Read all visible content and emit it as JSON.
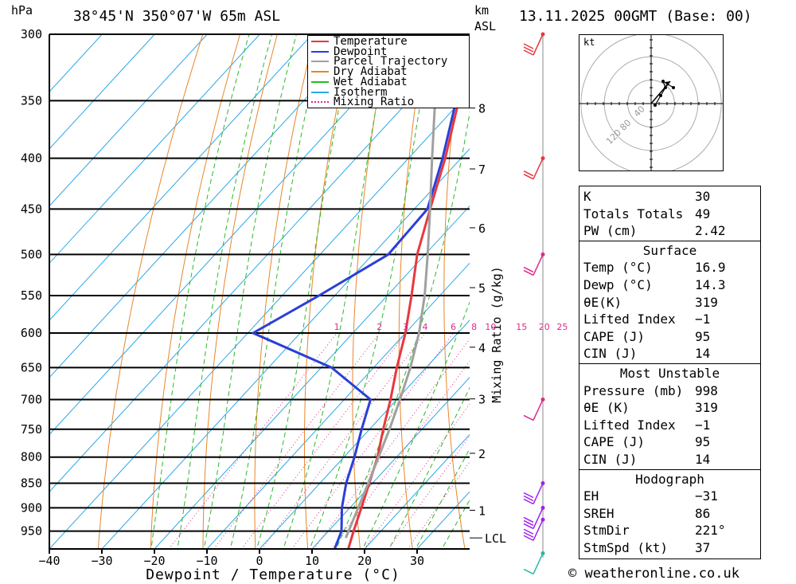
{
  "header": {
    "location": "38°45'N 350°07'W 65m ASL",
    "datetime": "13.11.2025 00GMT (Base: 00)",
    "hpa_unit": "hPa",
    "km_label": "km",
    "asl_label": "ASL"
  },
  "chart_data": {
    "type": "line",
    "title": "38°45'N 350°07'W 65m ASL",
    "xlabel": "Dewpoint / Temperature (°C)",
    "ylabel": "hPa",
    "xlim": [
      -40,
      40
    ],
    "ylim": [
      300,
      990
    ],
    "x_ticks": [
      -40,
      -30,
      -20,
      -10,
      0,
      10,
      20,
      30
    ],
    "pressure_levels": [
      300,
      350,
      400,
      450,
      500,
      550,
      600,
      650,
      700,
      750,
      800,
      850,
      900,
      950
    ],
    "km_ticks": [
      {
        "km": "1",
        "p": 905
      },
      {
        "km": "2",
        "p": 793
      },
      {
        "km": "3",
        "p": 699
      },
      {
        "km": "4",
        "p": 620
      },
      {
        "km": "5",
        "p": 540
      },
      {
        "km": "6",
        "p": 470
      },
      {
        "km": "7",
        "p": 410
      },
      {
        "km": "8",
        "p": 356
      }
    ],
    "lcl_label": "LCL",
    "lcl_pressure": 965,
    "mixing_ratio_label": "Mixing Ratio (g/kg)",
    "mixing_ratios": [
      "1",
      "2",
      "3",
      "4",
      "6",
      "8",
      "10",
      "15",
      "20",
      "25"
    ],
    "legend": {
      "position": "top-right",
      "items": [
        {
          "label": "Temperature",
          "color": "#e8383d"
        },
        {
          "label": "Dewpoint",
          "color": "#2a3fd8"
        },
        {
          "label": "Parcel Trajectory",
          "color": "#a0a0a0"
        },
        {
          "label": "Dry Adiabat",
          "color": "#e8862a"
        },
        {
          "label": "Wet Adiabat",
          "color": "#2ab82a"
        },
        {
          "label": "Isotherm",
          "color": "#2aa8e8"
        },
        {
          "label": "Mixing Ratio",
          "color": "#e0288c"
        }
      ]
    },
    "series": [
      {
        "name": "Temperature",
        "color": "#e8383d",
        "points": [
          {
            "p": 990,
            "t": 16.9
          },
          {
            "p": 950,
            "t": 14.8
          },
          {
            "p": 900,
            "t": 12.2
          },
          {
            "p": 850,
            "t": 9.4
          },
          {
            "p": 800,
            "t": 6.4
          },
          {
            "p": 750,
            "t": 2.6
          },
          {
            "p": 700,
            "t": -1.2
          },
          {
            "p": 650,
            "t": -5.6
          },
          {
            "p": 600,
            "t": -10.0
          },
          {
            "p": 550,
            "t": -15.4
          },
          {
            "p": 500,
            "t": -21.5
          },
          {
            "p": 450,
            "t": -27.0
          },
          {
            "p": 400,
            "t": -33.0
          },
          {
            "p": 350,
            "t": -40.5
          },
          {
            "p": 300,
            "t": -49.0
          }
        ]
      },
      {
        "name": "Dewpoint",
        "color": "#2a3fd8",
        "points": [
          {
            "p": 990,
            "t": 14.3
          },
          {
            "p": 950,
            "t": 12.5
          },
          {
            "p": 900,
            "t": 8.5
          },
          {
            "p": 850,
            "t": 5.0
          },
          {
            "p": 800,
            "t": 2.0
          },
          {
            "p": 750,
            "t": -1.5
          },
          {
            "p": 700,
            "t": -5.0
          },
          {
            "p": 650,
            "t": -18.0
          },
          {
            "p": 600,
            "t": -39.0
          },
          {
            "p": 550,
            "t": -33.0
          },
          {
            "p": 500,
            "t": -27.0
          },
          {
            "p": 450,
            "t": -27.5
          },
          {
            "p": 400,
            "t": -33.5
          },
          {
            "p": 350,
            "t": -41.0
          },
          {
            "p": 300,
            "t": -49.5
          }
        ]
      },
      {
        "name": "Parcel Trajectory",
        "color": "#a0a0a0",
        "points": [
          {
            "p": 965,
            "t": 14.5
          },
          {
            "p": 900,
            "t": 11.6
          },
          {
            "p": 850,
            "t": 9.2
          },
          {
            "p": 800,
            "t": 6.6
          },
          {
            "p": 750,
            "t": 3.8
          },
          {
            "p": 700,
            "t": 0.6
          },
          {
            "p": 650,
            "t": -3.0
          },
          {
            "p": 600,
            "t": -7.4
          },
          {
            "p": 550,
            "t": -12.9
          },
          {
            "p": 500,
            "t": -19.5
          },
          {
            "p": 450,
            "t": -27.0
          },
          {
            "p": 400,
            "t": -35.5
          },
          {
            "p": 350,
            "t": -45.0
          },
          {
            "p": 320,
            "t": -51.0
          }
        ]
      }
    ]
  },
  "hodograph": {
    "unit_label": "kt",
    "ring_labels": [
      "40",
      "80",
      "120"
    ],
    "points": [
      {
        "u": 5,
        "v": -2
      },
      {
        "u": 12,
        "v": 10
      },
      {
        "u": 18,
        "v": 20
      },
      {
        "u": 15,
        "v": 28
      },
      {
        "u": 28,
        "v": 20
      }
    ],
    "storm_motion": {
      "u": 24,
      "v": 28
    }
  },
  "wind_barbs": [
    {
      "p": 300,
      "color": "#e8383d",
      "flags": 3
    },
    {
      "p": 400,
      "color": "#e8383d",
      "flags": 2
    },
    {
      "p": 500,
      "color": "#e0288c",
      "flags": 2
    },
    {
      "p": 700,
      "color": "#e0288c",
      "flags": 1
    },
    {
      "p": 850,
      "color": "#a020f0",
      "flags": 3
    },
    {
      "p": 900,
      "color": "#a020f0",
      "flags": 3
    },
    {
      "p": 925,
      "color": "#a020f0",
      "flags": 3
    },
    {
      "p": 1000,
      "color": "#2ab8a8",
      "flags": 1
    }
  ],
  "indices": {
    "general": [
      {
        "label": "K",
        "value": "30"
      },
      {
        "label": "Totals Totals",
        "value": "49"
      },
      {
        "label": "PW (cm)",
        "value": "2.42"
      }
    ],
    "surface": {
      "title": "Surface",
      "rows": [
        {
          "label": "Temp (°C)",
          "value": "16.9"
        },
        {
          "label": "Dewp (°C)",
          "value": "14.3"
        },
        {
          "label": "θE(K)",
          "value": "319"
        },
        {
          "label": "Lifted Index",
          "value": "−1"
        },
        {
          "label": "CAPE (J)",
          "value": "95"
        },
        {
          "label": "CIN (J)",
          "value": "14"
        }
      ]
    },
    "most_unstable": {
      "title": "Most Unstable",
      "rows": [
        {
          "label": "Pressure (mb)",
          "value": "998"
        },
        {
          "label": "θE (K)",
          "value": "319"
        },
        {
          "label": "Lifted Index",
          "value": "−1"
        },
        {
          "label": "CAPE (J)",
          "value": "95"
        },
        {
          "label": "CIN (J)",
          "value": "14"
        }
      ]
    },
    "hodograph": {
      "title": "Hodograph",
      "rows": [
        {
          "label": "EH",
          "value": "−31"
        },
        {
          "label": "SREH",
          "value": "86"
        },
        {
          "label": "StmDir",
          "value": "221°"
        },
        {
          "label": "StmSpd (kt)",
          "value": "37"
        }
      ]
    }
  },
  "footer": {
    "copyright": "© weatheronline.co.uk"
  }
}
